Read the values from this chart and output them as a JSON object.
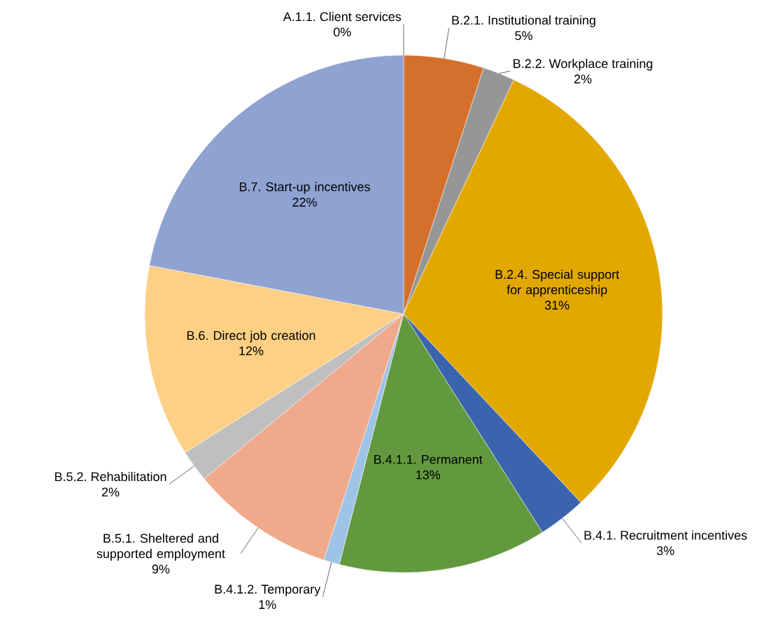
{
  "chart_data": {
    "type": "pie",
    "categories": [
      "A.1.1. Client services",
      "B.2.1. Institutional training",
      "B.2.2. Workplace training",
      "B.2.4. Special support for apprenticeship",
      "B.4.1. Recruitment incentives",
      "B.4.1.1. Permanent",
      "B.4.1.2. Temporary",
      "B.5.1. Sheltered and supported employment",
      "B.5.2. Rehabilitation",
      "B.6. Direct job creation",
      "B.7. Start-up incentives"
    ],
    "values": [
      0,
      5,
      2,
      31,
      3,
      13,
      1,
      9,
      2,
      12,
      22
    ],
    "value_labels": [
      "0%",
      "5%",
      "2%",
      "31%",
      "3%",
      "13%",
      "1%",
      "9%",
      "2%",
      "12%",
      "22%"
    ],
    "colors": [
      "#4472c4",
      "#d4702c",
      "#969696",
      "#e2a800",
      "#3a64ad",
      "#62993e",
      "#9dc3e6",
      "#f0a98b",
      "#bfbfbf",
      "#fdd086",
      "#8fa3d3"
    ]
  }
}
